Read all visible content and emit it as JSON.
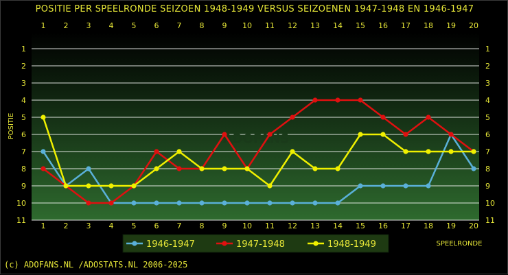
{
  "chart_data": {
    "type": "line",
    "title": "POSITIE PER SPEELRONDE SEIZOEN 1948-1949 VERSUS SEIZOENEN 1947-1948 EN 1946-1947",
    "xlabel": "SPEELRONDE",
    "ylabel": "POSITIE",
    "x": [
      1,
      2,
      3,
      4,
      5,
      6,
      7,
      8,
      9,
      10,
      11,
      12,
      13,
      14,
      15,
      16,
      17,
      18,
      19,
      20
    ],
    "ylim": [
      1,
      11
    ],
    "y_inverted": true,
    "yticks": [
      1,
      2,
      3,
      4,
      5,
      6,
      7,
      8,
      9,
      10,
      11
    ],
    "grid": true,
    "legend_position": "bottom",
    "series": [
      {
        "name": "1946-1947",
        "color": "#5ab0d8",
        "values": [
          7,
          9,
          8,
          10,
          10,
          10,
          10,
          10,
          10,
          10,
          10,
          10,
          10,
          10,
          9,
          9,
          9,
          9,
          6,
          8
        ]
      },
      {
        "name": "1947-1948",
        "color": "#e01010",
        "values": [
          8,
          9,
          10,
          10,
          9,
          7,
          8,
          8,
          6,
          8,
          6,
          5,
          4,
          4,
          4,
          5,
          6,
          5,
          6,
          7
        ]
      },
      {
        "name": "1948-1949",
        "color": "#f0f000",
        "values": [
          5,
          9,
          9,
          9,
          9,
          8,
          7,
          8,
          8,
          8,
          9,
          7,
          8,
          8,
          6,
          6,
          7,
          7,
          7,
          7
        ]
      }
    ]
  },
  "watermark": "ADOFANS",
  "footer": "(c) ADOFANS.NL /ADOSTATS.NL 2006-2025",
  "colors": {
    "background": "#000000",
    "plot_top": "#000000",
    "plot_bottom": "#2e6a2e",
    "grid": "#ffffff",
    "text": "#e8e838",
    "legend_bg": "#1e3a12"
  }
}
